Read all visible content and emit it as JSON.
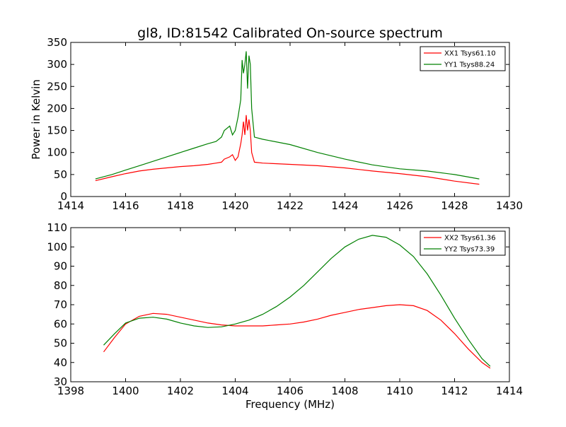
{
  "figure": {
    "title": "gl8, ID:81542 Calibrated On-source spectrum",
    "shared_ylabel": "Power in Kelvin",
    "xlabel": "Frequency (MHz)"
  },
  "colors": {
    "red": "#ff0000",
    "green": "#008000",
    "axis": "#000000"
  },
  "chart_data": [
    {
      "type": "line",
      "xlim": [
        1414,
        1430
      ],
      "ylim": [
        0,
        350
      ],
      "xticks": [
        1414,
        1416,
        1418,
        1420,
        1422,
        1424,
        1426,
        1428,
        1430
      ],
      "yticks": [
        0,
        50,
        100,
        150,
        200,
        250,
        300,
        350
      ],
      "grid": false,
      "legend_position": "top-right",
      "series": [
        {
          "name": "XX1 Tsys61.10",
          "color": "#ff0000",
          "x": [
            1414.9,
            1415.5,
            1416.0,
            1416.5,
            1417.0,
            1417.5,
            1418.0,
            1418.5,
            1419.0,
            1419.3,
            1419.5,
            1419.6,
            1419.8,
            1419.9,
            1420.0,
            1420.1,
            1420.2,
            1420.25,
            1420.3,
            1420.35,
            1420.4,
            1420.45,
            1420.5,
            1420.55,
            1420.6,
            1420.7,
            1421.0,
            1422.0,
            1423.0,
            1424.0,
            1425.0,
            1426.0,
            1427.0,
            1428.0,
            1428.9
          ],
          "y": [
            36,
            45,
            52,
            58,
            62,
            65,
            68,
            70,
            73,
            76,
            78,
            85,
            90,
            95,
            82,
            90,
            120,
            140,
            170,
            140,
            185,
            150,
            175,
            150,
            100,
            78,
            76,
            73,
            70,
            65,
            58,
            52,
            45,
            35,
            28
          ]
        },
        {
          "name": "YY1 Tsys88.24",
          "color": "#008000",
          "x": [
            1414.9,
            1415.5,
            1416.0,
            1416.5,
            1417.0,
            1417.5,
            1418.0,
            1418.5,
            1419.0,
            1419.3,
            1419.5,
            1419.6,
            1419.8,
            1419.9,
            1420.0,
            1420.1,
            1420.2,
            1420.25,
            1420.3,
            1420.35,
            1420.4,
            1420.45,
            1420.5,
            1420.55,
            1420.6,
            1420.7,
            1421.0,
            1422.0,
            1423.0,
            1424.0,
            1425.0,
            1426.0,
            1427.0,
            1428.0,
            1428.9
          ],
          "y": [
            40,
            50,
            60,
            70,
            80,
            90,
            100,
            110,
            120,
            125,
            135,
            150,
            160,
            140,
            150,
            180,
            220,
            310,
            280,
            300,
            330,
            245,
            320,
            300,
            200,
            135,
            130,
            118,
            100,
            85,
            72,
            63,
            58,
            50,
            40
          ]
        }
      ]
    },
    {
      "type": "line",
      "xlim": [
        1398,
        1414
      ],
      "ylim": [
        30,
        110
      ],
      "xticks": [
        1398,
        1400,
        1402,
        1404,
        1406,
        1408,
        1410,
        1412,
        1414
      ],
      "yticks": [
        30,
        40,
        50,
        60,
        70,
        80,
        90,
        100,
        110
      ],
      "grid": false,
      "legend_position": "top-right",
      "series": [
        {
          "name": "XX2 Tsys61.36",
          "color": "#ff0000",
          "x": [
            1399.2,
            1399.6,
            1400.0,
            1400.5,
            1401.0,
            1401.5,
            1402.0,
            1402.5,
            1403.0,
            1403.5,
            1404.0,
            1404.5,
            1405.0,
            1405.5,
            1406.0,
            1406.5,
            1407.0,
            1407.5,
            1408.0,
            1408.5,
            1409.0,
            1409.5,
            1410.0,
            1410.5,
            1411.0,
            1411.5,
            1412.0,
            1412.5,
            1413.0,
            1413.3
          ],
          "y": [
            45.5,
            53,
            60,
            64,
            65.5,
            65,
            63.5,
            62,
            60.5,
            59.5,
            59,
            59,
            59,
            59.5,
            60,
            61,
            62.5,
            64.5,
            66,
            67.5,
            68.5,
            69.5,
            70,
            69.5,
            67,
            62,
            55,
            47,
            40,
            37
          ]
        },
        {
          "name": "YY2 Tsys73.39",
          "color": "#008000",
          "x": [
            1399.2,
            1399.6,
            1400.0,
            1400.5,
            1401.0,
            1401.5,
            1402.0,
            1402.5,
            1403.0,
            1403.5,
            1404.0,
            1404.5,
            1405.0,
            1405.5,
            1406.0,
            1406.5,
            1407.0,
            1407.5,
            1408.0,
            1408.5,
            1409.0,
            1409.5,
            1410.0,
            1410.5,
            1411.0,
            1411.5,
            1412.0,
            1412.5,
            1413.0,
            1413.3
          ],
          "y": [
            49,
            55,
            60.5,
            63,
            63.5,
            62.5,
            60.5,
            59,
            58.2,
            58.5,
            60,
            62,
            65,
            69,
            74,
            80,
            87,
            94,
            100,
            104,
            106,
            105,
            101,
            95,
            86,
            75,
            63,
            52,
            42,
            38
          ]
        }
      ]
    }
  ]
}
